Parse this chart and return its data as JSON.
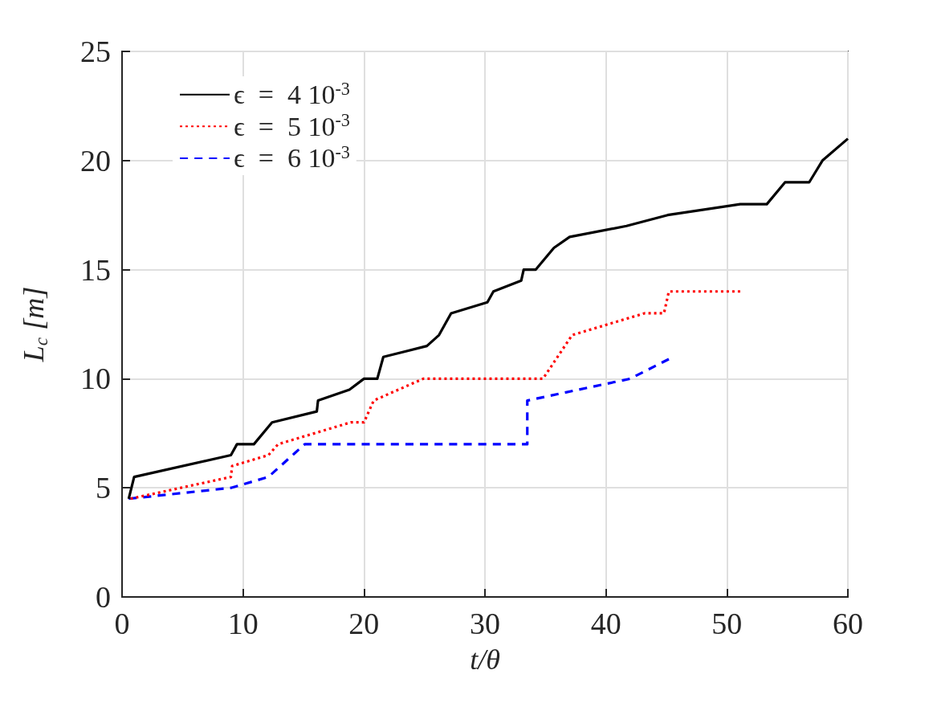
{
  "chart_data": {
    "type": "line",
    "xlabel": "t/θ",
    "ylabel": "L$_{c}$ [m]",
    "xlim": [
      0,
      60
    ],
    "xticks": [
      0,
      10,
      20,
      30,
      40,
      50,
      60
    ],
    "ylim": [
      0,
      25
    ],
    "yticks": [
      0,
      5,
      10,
      15,
      20,
      25
    ],
    "grid": true,
    "legend": "top left",
    "marker": "none",
    "series": [
      {
        "name": "ϵ  =  4 10$^{-3}$",
        "color": "#000000",
        "line_style": "solid",
        "x": [
          0.55,
          1.0,
          9.0,
          9.5,
          10.9,
          12.4,
          16.1,
          16.2,
          18.8,
          20.0,
          21.1,
          21.6,
          25.2,
          26.2,
          26.7,
          27.2,
          30.2,
          30.7,
          33.0,
          33.2,
          34.2,
          35.7,
          37.0,
          41.7,
          45.1,
          51.1,
          53.3,
          54.8,
          56.8,
          57.9,
          60.0
        ],
        "values": [
          4.5,
          5.5,
          6.5,
          7.0,
          7.0,
          8.0,
          8.5,
          9.0,
          9.5,
          10.0,
          10.0,
          11.0,
          11.5,
          12.0,
          12.5,
          13.0,
          13.5,
          14.0,
          14.5,
          15.0,
          15.0,
          16.0,
          16.5,
          17.0,
          17.5,
          18.0,
          18.0,
          19.0,
          19.0,
          20.0,
          21.0
        ]
      },
      {
        "name": "ϵ  =  5 10$^{-3}$",
        "color": "#ff0000",
        "line_style": "dotted",
        "x": [
          0.7,
          9.0,
          9.1,
          12.1,
          12.9,
          18.9,
          20.0,
          20.8,
          24.9,
          34.8,
          37.2,
          43.2,
          44.8,
          45.2,
          51.1
        ],
        "values": [
          4.5,
          5.5,
          6.0,
          6.5,
          7.0,
          8.0,
          8.0,
          9.0,
          10.0,
          10.0,
          12.0,
          13.0,
          13.0,
          14.0,
          14.0
        ]
      },
      {
        "name": "ϵ  =  6 10$^{-3}$",
        "color": "#0000ff",
        "line_style": "dashed",
        "x": [
          0.55,
          9.0,
          12.1,
          14.3,
          15.1,
          33.5,
          33.5,
          42.0,
          45.2
        ],
        "values": [
          4.5,
          5.0,
          5.5,
          6.6,
          7.0,
          7.0,
          9.0,
          10.0,
          10.9
        ]
      }
    ]
  }
}
